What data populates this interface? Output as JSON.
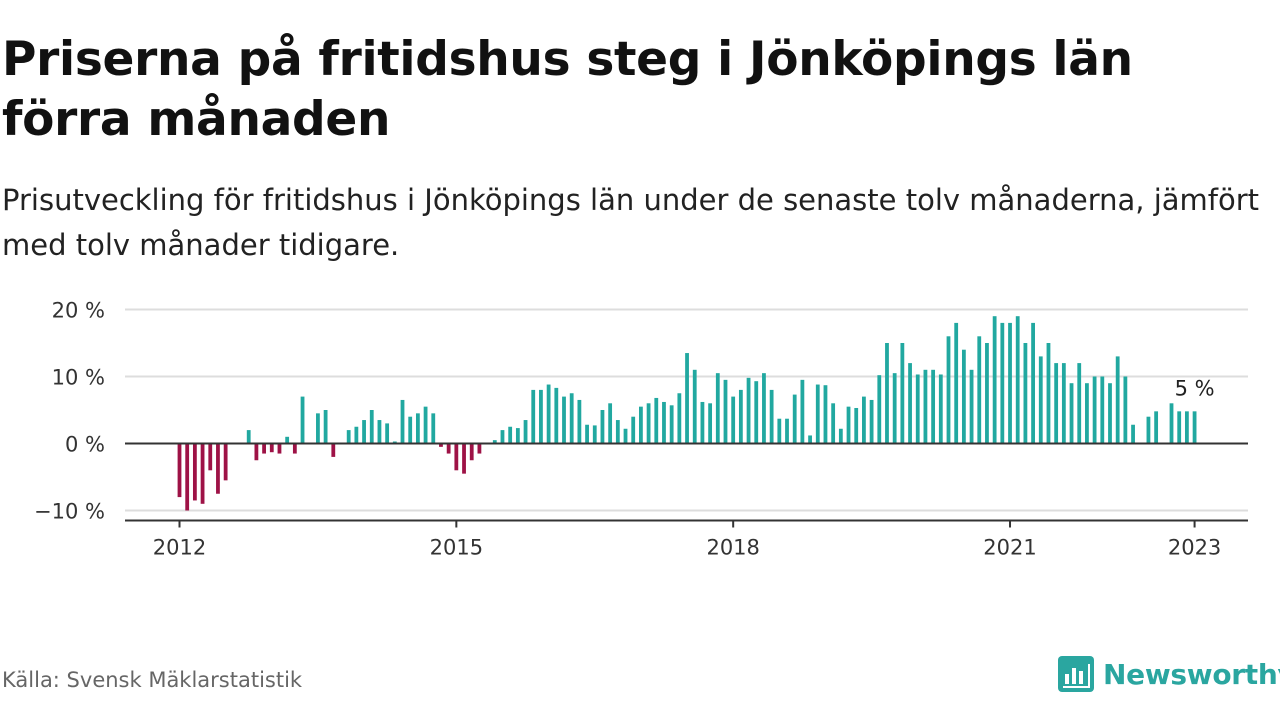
{
  "header": {
    "title": "Priserna på fritidshus steg i Jönköpings län förra månaden",
    "subtitle": "Prisutveckling för fritidshus i Jönköpings län under de senaste tolv månaderna, jämfört med tolv månader tidigare."
  },
  "footer": {
    "source": "Källa: Svensk Mäklarstatistik",
    "brand": "Newsworthy",
    "brand_icon": "newsworthy-logo-icon"
  },
  "colors": {
    "positive": "#21a8a0",
    "negative": "#9e1246",
    "brand": "#2aa6a0",
    "axis": "#333333",
    "grid": "#dddddd"
  },
  "chart_data": {
    "type": "bar",
    "x_start": "2012-01",
    "x_step": "month",
    "unit": "%",
    "ylim": [
      -10,
      20
    ],
    "y_ticks": [
      20,
      10,
      0,
      -10
    ],
    "y_tick_labels": [
      "20 %",
      "10 %",
      "0 %",
      "−10 %"
    ],
    "x_ticks": [
      "2012",
      "2015",
      "2018",
      "2021",
      "2023"
    ],
    "grid": true,
    "last_value_label": "5 %",
    "values": [
      -8,
      -10,
      -8.5,
      -9,
      -4,
      -7.5,
      -5.5,
      0,
      0,
      2,
      -2.5,
      -1.5,
      -1.3,
      -1.5,
      1,
      -1.5,
      7,
      0,
      4.5,
      5,
      -2,
      0,
      2,
      2.5,
      3.5,
      5,
      3.5,
      3,
      0.3,
      6.5,
      4,
      4.5,
      5.5,
      4.5,
      -0.5,
      -1.5,
      -4,
      -4.5,
      -2.5,
      -1.5,
      0,
      0.5,
      2,
      2.5,
      2.3,
      3.5,
      8,
      8,
      8.8,
      8.3,
      7,
      7.5,
      6.5,
      2.8,
      2.7,
      5,
      6,
      3.5,
      2.2,
      4,
      5.5,
      6,
      6.8,
      6.2,
      5.7,
      7.5,
      13.5,
      11,
      6.2,
      6,
      10.5,
      9.5,
      7,
      8,
      9.8,
      9.3,
      10.5,
      8,
      3.7,
      3.7,
      7.3,
      9.5,
      1.2,
      8.8,
      8.7,
      6,
      2.2,
      5.5,
      5.3,
      7,
      6.5,
      10.2,
      15,
      10.5,
      15,
      12,
      10.3,
      11,
      11,
      10.3,
      16,
      18,
      14,
      11,
      16,
      15,
      19,
      18,
      18,
      19,
      15,
      18,
      13,
      15,
      12,
      12,
      9,
      12,
      9,
      10,
      10,
      9,
      13,
      10,
      2.8,
      0,
      4,
      4.8,
      0,
      6,
      4.8,
      4.8,
      4.8
    ]
  }
}
